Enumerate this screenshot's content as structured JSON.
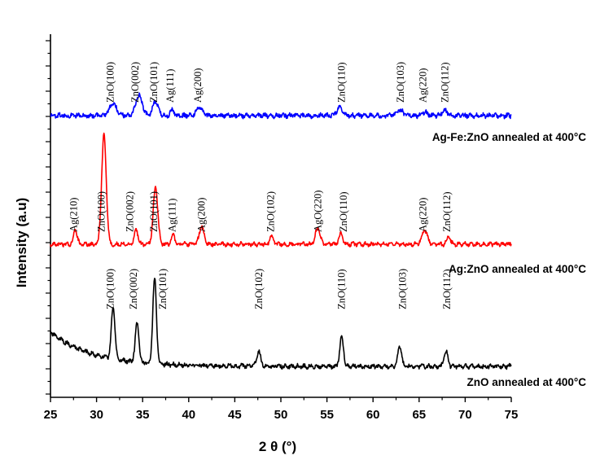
{
  "chart_data": {
    "type": "line",
    "title": "",
    "xlabel": "2 θ (°)",
    "ylabel": "Intensity (a.u)",
    "xlim": [
      25,
      75
    ],
    "xticks": [
      25,
      30,
      35,
      40,
      45,
      50,
      55,
      60,
      65,
      70,
      75
    ],
    "xtick_labels": [
      "25",
      "30",
      "35",
      "40",
      "45",
      "50",
      "55",
      "60",
      "65",
      "70",
      "75"
    ],
    "yticks_labeled": false,
    "grid": false,
    "series": [
      {
        "name": "ZnO annealed at 400°C",
        "label": "ZnO annealed at 400°C",
        "color": "#000000",
        "baseline": 0.0,
        "peaks": [
          {
            "x": 31.8,
            "h": 0.6,
            "w": 0.2
          },
          {
            "x": 34.4,
            "h": 0.45,
            "w": 0.2
          },
          {
            "x": 36.3,
            "h": 1.0,
            "w": 0.2
          },
          {
            "x": 47.6,
            "h": 0.18,
            "w": 0.2
          },
          {
            "x": 56.6,
            "h": 0.35,
            "w": 0.2
          },
          {
            "x": 62.9,
            "h": 0.24,
            "w": 0.2
          },
          {
            "x": 67.9,
            "h": 0.18,
            "w": 0.2
          }
        ],
        "peak_labels": [
          {
            "x": 31.5,
            "text": "ZnO(100)"
          },
          {
            "x": 34.0,
            "text": "ZnO(002)"
          },
          {
            "x": 37.2,
            "text": "ZnO(101)"
          },
          {
            "x": 47.6,
            "text": "ZnO(102)"
          },
          {
            "x": 56.6,
            "text": "ZnO(110)"
          },
          {
            "x": 63.2,
            "text": "ZnO(103)"
          },
          {
            "x": 68.0,
            "text": "ZnO(112)"
          }
        ]
      },
      {
        "name": "Ag:ZnO annealed at 400°C",
        "label": "Ag:ZnO annealed at 400°C",
        "color": "#ff0000",
        "baseline": 0.0,
        "peaks": [
          {
            "x": 27.7,
            "h": 0.12,
            "w": 0.2
          },
          {
            "x": 30.8,
            "h": 0.92,
            "w": 0.25
          },
          {
            "x": 34.3,
            "h": 0.12,
            "w": 0.2
          },
          {
            "x": 36.4,
            "h": 0.48,
            "w": 0.25
          },
          {
            "x": 38.3,
            "h": 0.08,
            "w": 0.2
          },
          {
            "x": 41.4,
            "h": 0.15,
            "w": 0.25
          },
          {
            "x": 49.0,
            "h": 0.07,
            "w": 0.2
          },
          {
            "x": 54.0,
            "h": 0.14,
            "w": 0.25
          },
          {
            "x": 56.5,
            "h": 0.09,
            "w": 0.2
          },
          {
            "x": 65.6,
            "h": 0.12,
            "w": 0.3
          },
          {
            "x": 68.2,
            "h": 0.06,
            "w": 0.2
          }
        ],
        "peak_labels": [
          {
            "x": 27.5,
            "text": "Ag(210)"
          },
          {
            "x": 30.5,
            "text": "ZnO(100)"
          },
          {
            "x": 33.6,
            "text": "ZnO(002)"
          },
          {
            "x": 36.2,
            "text": "ZnO(101)"
          },
          {
            "x": 38.2,
            "text": "Ag(111)"
          },
          {
            "x": 41.4,
            "text": "Ag(200)"
          },
          {
            "x": 48.9,
            "text": "ZnO(102)"
          },
          {
            "x": 54.0,
            "text": "AgO(220)"
          },
          {
            "x": 56.8,
            "text": "ZnO(110)"
          },
          {
            "x": 65.4,
            "text": "Ag(220)"
          },
          {
            "x": 68.0,
            "text": "ZnO(112)"
          }
        ]
      },
      {
        "name": "Ag-Fe:ZnO annealed at 400°C",
        "label": "Ag-Fe:ZnO annealed at 400°C",
        "color": "#0000ff",
        "baseline": 0.0,
        "peaks": [
          {
            "x": 31.8,
            "h": 0.12,
            "w": 0.4
          },
          {
            "x": 34.6,
            "h": 0.22,
            "w": 0.35
          },
          {
            "x": 36.4,
            "h": 0.15,
            "w": 0.3
          },
          {
            "x": 38.2,
            "h": 0.06,
            "w": 0.2
          },
          {
            "x": 41.2,
            "h": 0.08,
            "w": 0.35
          },
          {
            "x": 56.4,
            "h": 0.08,
            "w": 0.35
          },
          {
            "x": 62.9,
            "h": 0.06,
            "w": 0.35
          },
          {
            "x": 65.6,
            "h": 0.04,
            "w": 0.25
          },
          {
            "x": 67.8,
            "h": 0.05,
            "w": 0.3
          }
        ],
        "peak_labels": [
          {
            "x": 31.5,
            "text": "ZnO(100)"
          },
          {
            "x": 34.2,
            "text": "ZnO(002)"
          },
          {
            "x": 36.2,
            "text": "ZnO(101)"
          },
          {
            "x": 38.0,
            "text": "Ag(111)"
          },
          {
            "x": 41.0,
            "text": "Ag(200)"
          },
          {
            "x": 56.6,
            "text": "ZnO(110)"
          },
          {
            "x": 63.0,
            "text": "ZnO(103)"
          },
          {
            "x": 65.4,
            "text": "Ag(220)"
          },
          {
            "x": 67.8,
            "text": "ZnO(112)"
          }
        ]
      }
    ]
  }
}
